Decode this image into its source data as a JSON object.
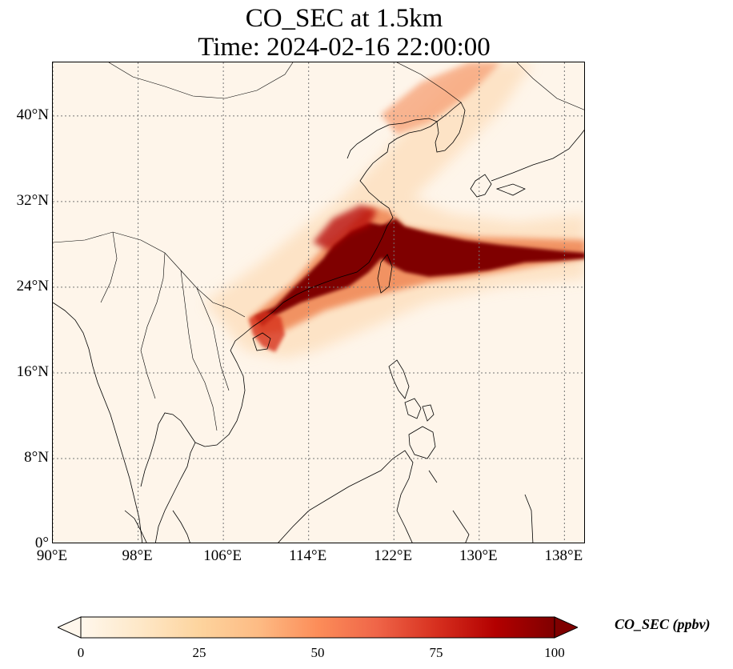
{
  "title": {
    "line1": "CO_SEC at 1.5km",
    "line2": "Time: 2024-02-16 22:00:00"
  },
  "map": {
    "lon_range": [
      90,
      140
    ],
    "lat_range": [
      0,
      45
    ],
    "lon_ticks": [
      {
        "value": 90,
        "label": "90°E"
      },
      {
        "value": 98,
        "label": "98°E"
      },
      {
        "value": 106,
        "label": "106°E"
      },
      {
        "value": 114,
        "label": "114°E"
      },
      {
        "value": 122,
        "label": "122°E"
      },
      {
        "value": 130,
        "label": "130°E"
      },
      {
        "value": 138,
        "label": "138°E"
      }
    ],
    "lat_ticks": [
      {
        "value": 0,
        "label": "0°"
      },
      {
        "value": 8,
        "label": "8°N"
      },
      {
        "value": 16,
        "label": "16°N"
      },
      {
        "value": 24,
        "label": "24°N"
      },
      {
        "value": 32,
        "label": "32°N"
      },
      {
        "value": 40,
        "label": "40°N"
      }
    ],
    "gridlines": true,
    "background_color": "#fef5ea"
  },
  "colorbar": {
    "label": "CO_SEC (ppbv)",
    "ticks": [
      "0",
      "25",
      "50",
      "75",
      "100"
    ],
    "min": 0,
    "max": 100,
    "extend": "both",
    "colormap": "OrRd",
    "stops": [
      "#fff7ec",
      "#fee8c8",
      "#fdd49e",
      "#fdbb84",
      "#fc8d59",
      "#ef6548",
      "#d7301f",
      "#b30000",
      "#7f0000"
    ]
  }
}
